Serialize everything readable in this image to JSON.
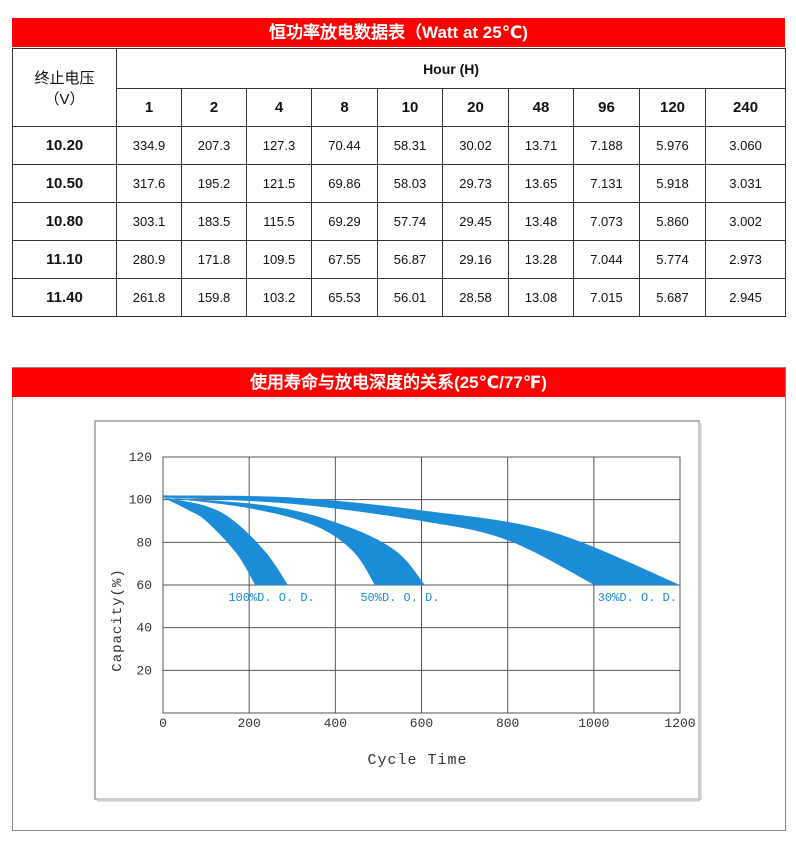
{
  "table": {
    "title": "恒功率放电数据表（Watt at 25℃)",
    "row_header": "终止电压",
    "row_header_unit": "（V）",
    "hour_header": "Hour (H)",
    "hours": [
      "1",
      "2",
      "4",
      "8",
      "10",
      "20",
      "48",
      "96",
      "120",
      "240"
    ],
    "rows": [
      {
        "voltage": "10.20",
        "values": [
          "334.9",
          "207.3",
          "127.3",
          "70.44",
          "58.31",
          "30.02",
          "13.71",
          "7.188",
          "5.976",
          "3.060"
        ]
      },
      {
        "voltage": "10.50",
        "values": [
          "317.6",
          "195.2",
          "121.5",
          "69.86",
          "58.03",
          "29.73",
          "13.65",
          "7.131",
          "5.918",
          "3.031"
        ]
      },
      {
        "voltage": "10.80",
        "values": [
          "303.1",
          "183.5",
          "115.5",
          "69.29",
          "57.74",
          "29.45",
          "13.48",
          "7.073",
          "5.860",
          "3.002"
        ]
      },
      {
        "voltage": "11.10",
        "values": [
          "280.9",
          "171.8",
          "109.5",
          "67.55",
          "56.87",
          "29.16",
          "13.28",
          "7.044",
          "5.774",
          "2.973"
        ]
      },
      {
        "voltage": "11.40",
        "values": [
          "261.8",
          "159.8",
          "103.2",
          "65.53",
          "56.01",
          "28.58",
          "13.08",
          "7.015",
          "5.687",
          "2.945"
        ]
      }
    ]
  },
  "chart_data": {
    "type": "band",
    "title": "使用寿命与放电深度的关系(25℃/77℉)",
    "xlabel": "Cycle Time",
    "ylabel": "Capacity(%)",
    "xlim": [
      0,
      1200
    ],
    "ylim": [
      0,
      120
    ],
    "xticks": [
      0,
      200,
      400,
      600,
      800,
      1000,
      1200
    ],
    "yticks": [
      20,
      40,
      60,
      80,
      100,
      120
    ],
    "grid": true,
    "series": [
      {
        "name": "100%D. O. D.",
        "color": "#1a8cd8",
        "x_upper": [
          0,
          100,
          165,
          240,
          290
        ],
        "upper": [
          101,
          97,
          90,
          75,
          60
        ],
        "x_lower": [
          0,
          60,
          100,
          170,
          214
        ],
        "lower": [
          101,
          95,
          90,
          75,
          60
        ]
      },
      {
        "name": "50%D. O. D.",
        "color": "#1a8cd8",
        "x_upper": [
          0,
          250,
          420,
          540,
          608
        ],
        "upper": [
          101,
          97,
          88,
          76,
          60
        ],
        "x_lower": [
          0,
          200,
          350,
          440,
          492
        ],
        "lower": [
          101,
          96,
          88,
          76,
          60
        ]
      },
      {
        "name": "30%D. O. D.",
        "color": "#1a8cd8",
        "x_upper": [
          0,
          300,
          600,
          900,
          1200
        ],
        "upper": [
          102,
          101,
          95,
          85,
          60
        ],
        "x_lower": [
          0,
          300,
          600,
          800,
          1002
        ],
        "lower": [
          101,
          98,
          90,
          81,
          60
        ]
      }
    ]
  }
}
